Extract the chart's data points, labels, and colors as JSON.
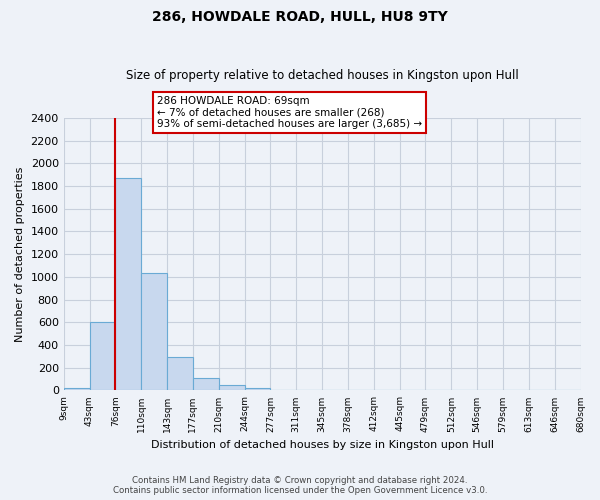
{
  "title": "286, HOWDALE ROAD, HULL, HU8 9TY",
  "subtitle": "Size of property relative to detached houses in Kingston upon Hull",
  "xlabel": "Distribution of detached houses by size in Kingston upon Hull",
  "ylabel": "Number of detached properties",
  "bin_labels": [
    "9sqm",
    "43sqm",
    "76sqm",
    "110sqm",
    "143sqm",
    "177sqm",
    "210sqm",
    "244sqm",
    "277sqm",
    "311sqm",
    "345sqm",
    "378sqm",
    "412sqm",
    "445sqm",
    "479sqm",
    "512sqm",
    "546sqm",
    "579sqm",
    "613sqm",
    "646sqm",
    "680sqm"
  ],
  "bar_values": [
    20,
    600,
    1870,
    1030,
    290,
    110,
    45,
    20,
    0,
    0,
    0,
    0,
    0,
    0,
    0,
    0,
    0,
    0,
    0,
    0
  ],
  "bar_color": "#c8d8ee",
  "bar_edge_color": "#6aaad4",
  "marker_line_color": "#cc0000",
  "annotation_line1": "286 HOWDALE ROAD: 69sqm",
  "annotation_line2": "← 7% of detached houses are smaller (268)",
  "annotation_line3": "93% of semi-detached houses are larger (3,685) →",
  "annotation_box_color": "#ffffff",
  "annotation_box_edge": "#cc0000",
  "ylim": [
    0,
    2400
  ],
  "yticks": [
    0,
    200,
    400,
    600,
    800,
    1000,
    1200,
    1400,
    1600,
    1800,
    2000,
    2200,
    2400
  ],
  "footer_line1": "Contains HM Land Registry data © Crown copyright and database right 2024.",
  "footer_line2": "Contains public sector information licensed under the Open Government Licence v3.0.",
  "background_color": "#eef2f8",
  "plot_bg_color": "#eef2f8",
  "grid_color": "#c8d0dc"
}
